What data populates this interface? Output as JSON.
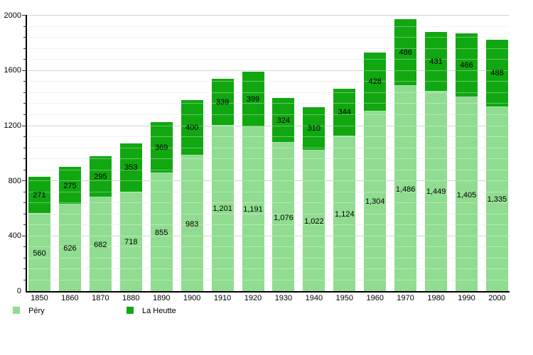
{
  "legend": {
    "pery_label": "Péry",
    "la_heutte_label": "La Heutte"
  },
  "colors": {
    "pery": "#90dc90",
    "la_heutte": "#11a711",
    "axis": "#000000",
    "gridline_major": "#bdbdbd",
    "gridline_minor": "#ececec",
    "label_text": "#000000"
  },
  "chart_data": {
    "type": "bar",
    "stacked": true,
    "categories": [
      "1850",
      "1860",
      "1870",
      "1880",
      "1890",
      "1900",
      "1910",
      "1920",
      "1930",
      "1940",
      "1950",
      "1960",
      "1970",
      "1980",
      "1990",
      "2000"
    ],
    "series": [
      {
        "name": "Péry",
        "values": [
          560,
          626,
          682,
          718,
          855,
          983,
          1201,
          1191,
          1076,
          1022,
          1124,
          1304,
          1486,
          1449,
          1405,
          1335
        ],
        "labels": [
          "560",
          "626",
          "682",
          "718",
          "855",
          "983",
          "1,201",
          "1,191",
          "1,076",
          "1,022",
          "1,124",
          "1,304",
          "1,486",
          "1,449",
          "1,405",
          "1,335"
        ]
      },
      {
        "name": "La Heutte",
        "values": [
          271,
          275,
          295,
          353,
          369,
          400,
          339,
          399,
          324,
          310,
          344,
          428,
          486,
          431,
          466,
          488
        ],
        "labels": [
          "271",
          "275",
          "295",
          "353",
          "369",
          "400",
          "339",
          "399",
          "324",
          "310",
          "344",
          "428",
          "486",
          "431",
          "466",
          "488"
        ]
      }
    ],
    "ylim": [
      0,
      2000
    ],
    "yticks": [
      0,
      400,
      800,
      1200,
      1600,
      2000
    ],
    "ytick_labels": [
      "0",
      "400",
      "800",
      "1200",
      "1600",
      "2000"
    ],
    "minor_step": 80,
    "grid": true,
    "legend_position": "bottom-left"
  }
}
